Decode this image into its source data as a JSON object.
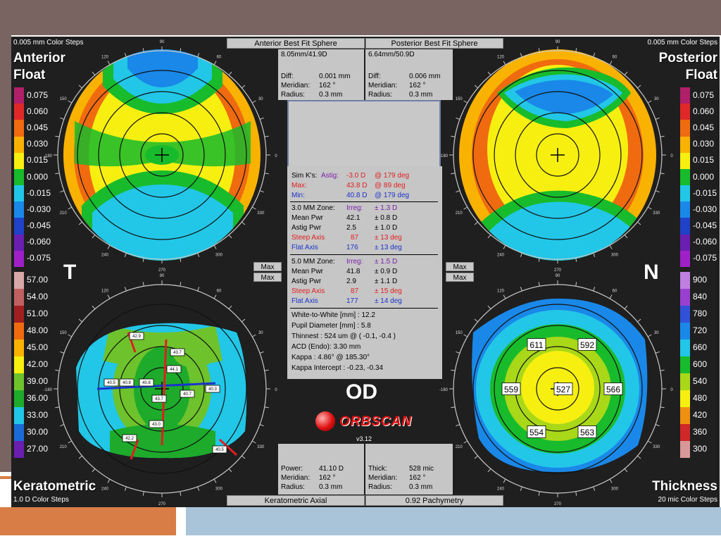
{
  "colors": {
    "accent_red": "#e02020",
    "accent_blue": "#1a33cc",
    "accent_purple": "#7a1fa8"
  },
  "corner_labels": {
    "top_left_steps": "0.005 mm Color Steps",
    "top_right_steps": "0.005 mm Color Steps",
    "bottom_left_steps": "1.0 D Color Steps",
    "bottom_right_steps": "20 mic Color Steps",
    "anterior": "Anterior",
    "float_left": "Float",
    "posterior": "Posterior",
    "float_right": "Float",
    "keratometric": "Keratometric",
    "thickness": "Thickness",
    "t": "T",
    "n": "N",
    "od": "OD"
  },
  "headers": {
    "anterior_bfs": "Anterior Best Fit Sphere",
    "posterior_bfs": "Posterior Best Fit Sphere",
    "keratometric_axial": "Keratometric Axial",
    "pachymetry": "0.92 Pachymetry"
  },
  "anterior_info": {
    "sphere": "8.05mm/41.9D",
    "diff_label": "Diff:",
    "diff": "0.001 mm",
    "meridian_label": "Meridian:",
    "meridian": "162 °",
    "radius_label": "Radius:",
    "radius": "0.3 mm"
  },
  "posterior_info": {
    "sphere": "6.64mm/50.9D",
    "diff_label": "Diff:",
    "diff": "0.006 mm",
    "meridian_label": "Meridian:",
    "meridian": "162 °",
    "radius_label": "Radius:",
    "radius": "0.3 mm"
  },
  "kerato_info": {
    "power_label": "Power:",
    "power": "41.10 D",
    "meridian_label": "Meridian:",
    "meridian": "162 °",
    "radius_label": "Radius:",
    "radius": "0.3 mm"
  },
  "pachy_info": {
    "thick_label": "Thick:",
    "thick": "528 mic",
    "meridian_label": "Meridian:",
    "meridian": "162 °",
    "radius_label": "Radius:",
    "radius": "0.3 mm"
  },
  "max_buttons": {
    "label": "Max"
  },
  "center": {
    "simk": {
      "label": "Sim K's:",
      "astig_label": "Astig:",
      "astig": "-3.0 D",
      "astig_axis": "@ 179 deg",
      "max_label": "Max:",
      "max": "43.8 D",
      "max_axis": "@ 89 deg",
      "min_label": "Min:",
      "min": "40.8 D",
      "min_axis": "@ 179 deg"
    },
    "zone3": {
      "title": "3.0 MM Zone:",
      "irreg_label": "Irreg:",
      "irreg": "± 1.3 D",
      "mean_label": "Mean Pwr",
      "mean": "42.1",
      "mean_pm": "± 0.8 D",
      "astig_label": "Astig Pwr",
      "astig": "2.5",
      "astig_pm": "± 1.0 D",
      "steep_label": "Steep Axis",
      "steep": "87",
      "steep_pm": "± 13 deg",
      "flat_label": "Flat Axis",
      "flat": "176",
      "flat_pm": "± 13 deg"
    },
    "zone5": {
      "title": "5.0 MM Zone:",
      "irreg_label": "Irreg:",
      "irreg": "± 1.5 D",
      "mean_label": "Mean Pwr",
      "mean": "41.8",
      "mean_pm": "± 0.9 D",
      "astig_label": "Astig Pwr",
      "astig": "2.9",
      "astig_pm": "± 1.1 D",
      "steep_label": "Steep Axis",
      "steep": "87",
      "steep_pm": "± 15 deg",
      "flat_label": "Flat Axis",
      "flat": "177",
      "flat_pm": "± 14 deg"
    },
    "misc": [
      "White-to-White [mm] : 12.2",
      "Pupil Diameter [mm] :  5.8",
      "Thinnest : 524 um @ ( -0.1, -0.4 )",
      "ACD (Endo): 3.30 mm",
      "Kappa : 4.86° @ 185.30°",
      "Kappa Intercept : -0.23, -0.34"
    ]
  },
  "logo": {
    "text": "ORBSCAN",
    "version": "v3.12"
  },
  "legends": {
    "float_left": [
      "0.075",
      "0.060",
      "0.045",
      "0.030",
      "0.015",
      "0.000",
      "-0.015",
      "-0.030",
      "-0.045",
      "-0.060",
      "-0.075"
    ],
    "float_right": [
      "0.075",
      "0.060",
      "0.045",
      "0.030",
      "0.015",
      "0.000",
      "-0.015",
      "-0.030",
      "-0.045",
      "-0.060",
      "-0.075"
    ],
    "kerato": [
      "57.00",
      "54.00",
      "51.00",
      "48.00",
      "45.00",
      "42.00",
      "39.00",
      "36.00",
      "33.00",
      "30.00",
      "27.00"
    ],
    "thickness": [
      "900",
      "840",
      "780",
      "720",
      "660",
      "600",
      "540",
      "480",
      "420",
      "360",
      "300"
    ],
    "float_colors": [
      "#b0206a",
      "#e02828",
      "#f06a10",
      "#f9b200",
      "#f7ef10",
      "#18bb2c",
      "#22c7e8",
      "#1a88e8",
      "#2042c8",
      "#6a1fb0",
      "#a020c8"
    ],
    "kerato_colors": [
      "#d8a8a8",
      "#c06060",
      "#a02020",
      "#f06a10",
      "#f9b200",
      "#f7ef10",
      "#6ec32c",
      "#1eaa2a",
      "#22c7e8",
      "#1a6ad8",
      "#6a1fb0"
    ],
    "thick_colors": [
      "#c080e0",
      "#9a40d0",
      "#3050d8",
      "#1a88e8",
      "#22c7e8",
      "#18bb2c",
      "#a8d818",
      "#f7ef10",
      "#f09010",
      "#d02828",
      "#d89898"
    ]
  },
  "axis_ticks": {
    "t0": "0",
    "t30": "30",
    "t60": "60",
    "t90": "90",
    "t106": "106",
    "t120": "120",
    "t150": "150",
    "t180": "-180",
    "t210": "210",
    "t240": "240",
    "t256": "256",
    "t270": "270",
    "t300": "300",
    "t330": "330",
    "t346": "346"
  },
  "kerato_values": [
    "42.9",
    "43.7",
    "44.1",
    "40.5",
    "40.8",
    "40.8",
    "43.7",
    "40.7",
    "40.3",
    "43.0",
    "42.2",
    "40.5"
  ],
  "pachy_values": [
    "611",
    "592",
    "559",
    "527",
    "566",
    "554",
    "563"
  ]
}
